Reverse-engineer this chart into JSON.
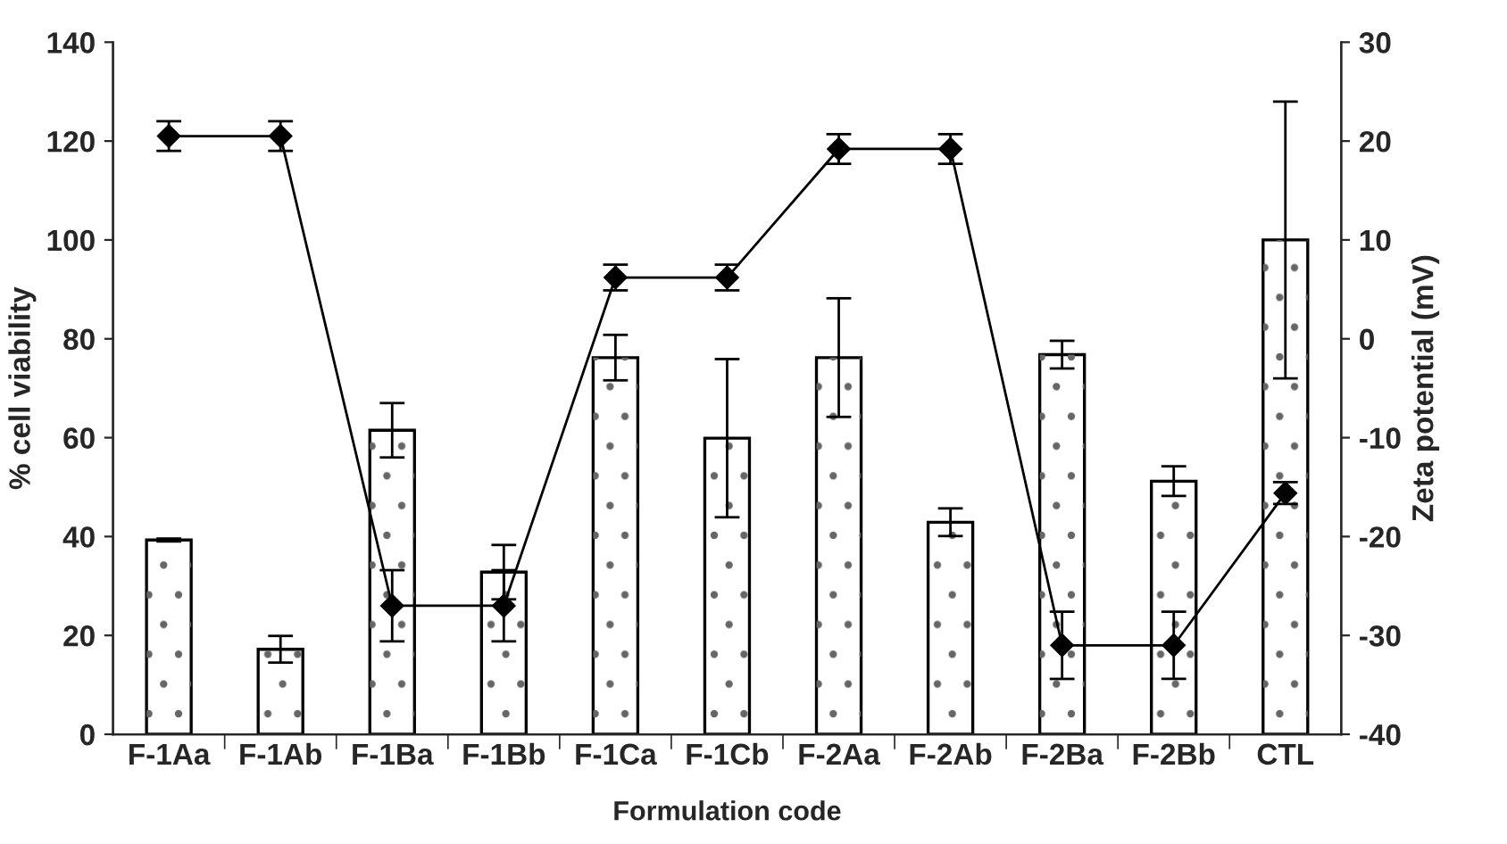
{
  "chart_data": {
    "type": "bar",
    "xlabel": "Formulation code",
    "ylabel": "% cell viability",
    "y2label": "Zeta potential (mV)",
    "categories": [
      "F-1Aa",
      "F-1Ab",
      "F-1Ba",
      "F-1Bb",
      "F-1Ca",
      "F-1Cb",
      "F-2Aa",
      "F-2Ab",
      "F-2Ba",
      "F-2Bb",
      "CTL"
    ],
    "series": [
      {
        "color": "#ffffff",
        "values": [
          39.3,
          17.2,
          61.5,
          32.8,
          76.2,
          59.9,
          76.2,
          42.9,
          76.8,
          51.2,
          100
        ],
        "errors": [
          0.3,
          2.7,
          5.5,
          5.5,
          4.6,
          16,
          12,
          2.8,
          2.8,
          3,
          28
        ]
      },
      {
        "type": "line",
        "axis": "y2",
        "color": "#000000",
        "values": [
          20.5,
          20.5,
          -27,
          -27,
          6.2,
          6.2,
          19.2,
          19.2,
          -31,
          -31,
          -15.6
        ],
        "errors": [
          1.5,
          1.5,
          3.6,
          3.6,
          1.3,
          1.3,
          1.5,
          1.5,
          3.4,
          3.4,
          1.1
        ]
      }
    ],
    "ylim": [
      0,
      140
    ],
    "yticks": [
      0,
      20,
      40,
      60,
      80,
      100,
      120,
      140
    ],
    "y2lim": [
      -40,
      30
    ],
    "y2ticks": [
      -40,
      -30,
      -20,
      -10,
      0,
      10,
      20,
      30
    ],
    "marker": "diamond",
    "line_style": "solid",
    "grid": false,
    "legend": false
  }
}
